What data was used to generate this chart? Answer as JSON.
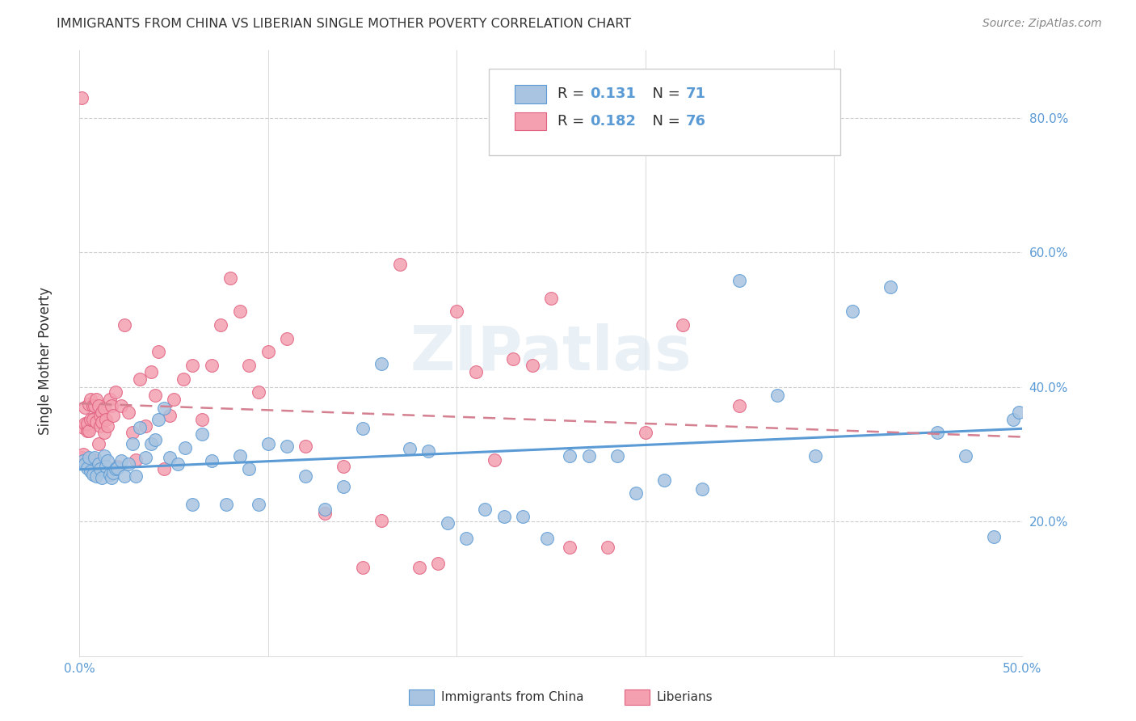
{
  "title": "IMMIGRANTS FROM CHINA VS LIBERIAN SINGLE MOTHER POVERTY CORRELATION CHART",
  "source": "Source: ZipAtlas.com",
  "ylabel": "Single Mother Poverty",
  "xlim": [
    0.0,
    0.5
  ],
  "ylim": [
    0.0,
    0.9
  ],
  "xtick_positions": [
    0.0,
    0.5
  ],
  "xtick_labels": [
    "0.0%",
    "50.0%"
  ],
  "ytick_positions": [
    0.2,
    0.4,
    0.6,
    0.8
  ],
  "ytick_labels": [
    "20.0%",
    "40.0%",
    "60.0%",
    "80.0%"
  ],
  "legend_R1": "0.131",
  "legend_N1": "71",
  "legend_R2": "0.182",
  "legend_N2": "76",
  "color_china_fill": "#a8c4e0",
  "color_china_edge": "#5b9bd5",
  "color_liberia_fill": "#f4a0b0",
  "color_liberia_edge": "#e06080",
  "color_china_line": "#5b9bd5",
  "color_liberia_line": "#d48090",
  "background_color": "#ffffff",
  "grid_color": "#cccccc",
  "china_x": [
    0.002,
    0.003,
    0.004,
    0.005,
    0.006,
    0.007,
    0.008,
    0.009,
    0.01,
    0.011,
    0.012,
    0.013,
    0.014,
    0.015,
    0.016,
    0.017,
    0.018,
    0.019,
    0.02,
    0.022,
    0.024,
    0.026,
    0.028,
    0.03,
    0.032,
    0.035,
    0.038,
    0.04,
    0.042,
    0.045,
    0.048,
    0.052,
    0.056,
    0.06,
    0.065,
    0.07,
    0.078,
    0.085,
    0.09,
    0.095,
    0.1,
    0.11,
    0.12,
    0.13,
    0.14,
    0.15,
    0.16,
    0.175,
    0.185,
    0.195,
    0.205,
    0.215,
    0.225,
    0.235,
    0.248,
    0.26,
    0.27,
    0.285,
    0.295,
    0.31,
    0.33,
    0.35,
    0.37,
    0.39,
    0.41,
    0.43,
    0.455,
    0.47,
    0.485,
    0.495,
    0.498
  ],
  "china_y": [
    0.29,
    0.285,
    0.28,
    0.295,
    0.275,
    0.27,
    0.295,
    0.268,
    0.285,
    0.278,
    0.265,
    0.298,
    0.282,
    0.29,
    0.27,
    0.265,
    0.272,
    0.278,
    0.28,
    0.29,
    0.268,
    0.285,
    0.315,
    0.268,
    0.34,
    0.295,
    0.315,
    0.322,
    0.352,
    0.368,
    0.295,
    0.285,
    0.31,
    0.225,
    0.33,
    0.29,
    0.225,
    0.298,
    0.278,
    0.225,
    0.315,
    0.312,
    0.268,
    0.218,
    0.252,
    0.338,
    0.435,
    0.308,
    0.305,
    0.198,
    0.175,
    0.218,
    0.208,
    0.208,
    0.175,
    0.298,
    0.298,
    0.298,
    0.242,
    0.262,
    0.248,
    0.558,
    0.388,
    0.298,
    0.512,
    0.548,
    0.332,
    0.298,
    0.178,
    0.352,
    0.362
  ],
  "liberia_x": [
    0.001,
    0.001,
    0.002,
    0.002,
    0.003,
    0.003,
    0.004,
    0.004,
    0.005,
    0.005,
    0.006,
    0.006,
    0.007,
    0.007,
    0.008,
    0.008,
    0.009,
    0.009,
    0.01,
    0.01,
    0.011,
    0.011,
    0.012,
    0.012,
    0.013,
    0.013,
    0.014,
    0.015,
    0.016,
    0.017,
    0.018,
    0.019,
    0.02,
    0.022,
    0.024,
    0.026,
    0.028,
    0.03,
    0.032,
    0.035,
    0.038,
    0.04,
    0.042,
    0.045,
    0.048,
    0.05,
    0.055,
    0.06,
    0.065,
    0.07,
    0.075,
    0.08,
    0.085,
    0.09,
    0.095,
    0.1,
    0.11,
    0.12,
    0.13,
    0.14,
    0.15,
    0.16,
    0.17,
    0.18,
    0.19,
    0.2,
    0.21,
    0.22,
    0.23,
    0.24,
    0.25,
    0.26,
    0.28,
    0.3,
    0.32,
    0.35
  ],
  "liberia_y": [
    0.83,
    0.295,
    0.3,
    0.34,
    0.345,
    0.37,
    0.335,
    0.345,
    0.375,
    0.335,
    0.352,
    0.382,
    0.372,
    0.352,
    0.292,
    0.372,
    0.348,
    0.382,
    0.372,
    0.315,
    0.358,
    0.342,
    0.362,
    0.348,
    0.332,
    0.368,
    0.352,
    0.342,
    0.382,
    0.372,
    0.358,
    0.392,
    0.282,
    0.372,
    0.492,
    0.362,
    0.332,
    0.292,
    0.412,
    0.342,
    0.422,
    0.388,
    0.452,
    0.278,
    0.358,
    0.382,
    0.412,
    0.432,
    0.352,
    0.432,
    0.492,
    0.562,
    0.512,
    0.432,
    0.392,
    0.452,
    0.472,
    0.312,
    0.212,
    0.282,
    0.132,
    0.202,
    0.582,
    0.132,
    0.138,
    0.512,
    0.422,
    0.292,
    0.442,
    0.432,
    0.532,
    0.162,
    0.162,
    0.332,
    0.492,
    0.372
  ]
}
